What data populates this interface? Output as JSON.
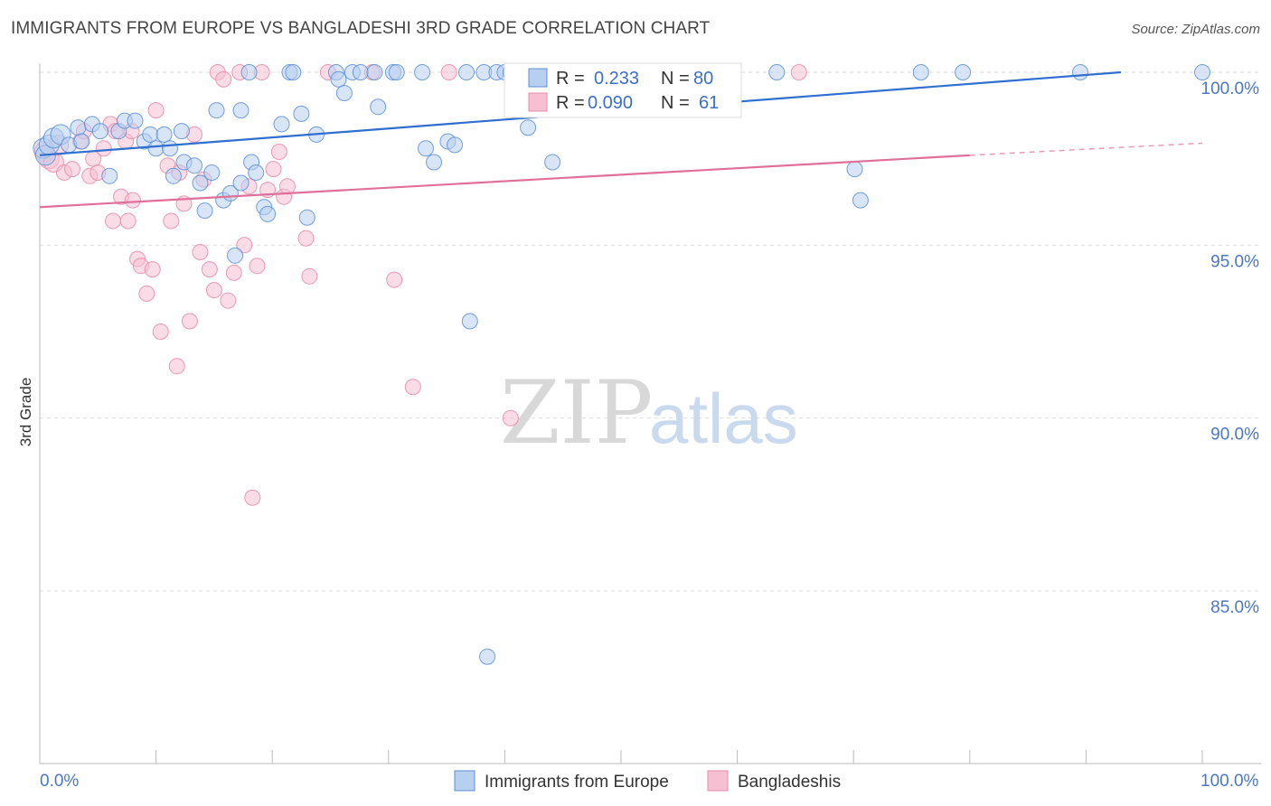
{
  "header": {
    "title": "IMMIGRANTS FROM EUROPE VS BANGLADESHI 3RD GRADE CORRELATION CHART",
    "source": "Source: ZipAtlas.com"
  },
  "watermark": {
    "zip": "ZIP",
    "atlas": "atlas"
  },
  "colors": {
    "blue": "#5b8fd6",
    "blue_fill": "#b8d0f0",
    "blue_line": "#2f6fcf",
    "pink": "#e88aa8",
    "pink_fill": "#f6c0d2",
    "pink_line": "#e0709a",
    "grid": "#dddddd",
    "tick_text": "#4a78c4"
  },
  "chart_data": {
    "type": "scatter",
    "title": "IMMIGRANTS FROM EUROPE VS BANGLADESHI 3RD GRADE CORRELATION CHART",
    "xlabel": "",
    "ylabel": "3rd Grade",
    "xlim": [
      0,
      100
    ],
    "ylim": [
      80.3,
      100.8
    ],
    "x_tick_labels": [
      "0.0%",
      "100.0%"
    ],
    "y_ticks": [
      100,
      95,
      90,
      85
    ],
    "y_tick_labels": [
      "100.0%",
      "95.0%",
      "90.0%",
      "85.0%"
    ],
    "grid": true,
    "legend_position": "top-center",
    "legend": [
      {
        "series": "Immigrants from Europe",
        "r_label": "R =",
        "r_value": "0.233",
        "n_label": "N =",
        "n_value": "80"
      },
      {
        "series": "Bangladeshis",
        "r_label": "R =",
        "r_value": "0.090",
        "n_label": "N =",
        "n_value": "61"
      }
    ],
    "series": [
      {
        "name": "Immigrants from Europe",
        "color": "#5b8fd6",
        "trend": {
          "x": [
            0,
            93
          ],
          "y": [
            97.6,
            100.0
          ],
          "dashed_to": null
        },
        "points": [
          [
            0.3,
            97.8
          ],
          [
            0.5,
            97.6
          ],
          [
            0.8,
            97.9
          ],
          [
            1.2,
            98.1
          ],
          [
            1.8,
            98.2
          ],
          [
            2.5,
            97.9
          ],
          [
            3.3,
            98.4
          ],
          [
            3.6,
            98.0
          ],
          [
            4.5,
            98.5
          ],
          [
            5.2,
            98.3
          ],
          [
            6.0,
            97.0
          ],
          [
            6.8,
            98.3
          ],
          [
            7.3,
            98.6
          ],
          [
            8.2,
            98.6
          ],
          [
            9.0,
            98.0
          ],
          [
            9.5,
            98.2
          ],
          [
            10.0,
            97.8
          ],
          [
            10.7,
            98.2
          ],
          [
            11.2,
            97.8
          ],
          [
            11.5,
            97.0
          ],
          [
            12.2,
            98.3
          ],
          [
            12.4,
            97.4
          ],
          [
            13.3,
            97.3
          ],
          [
            13.8,
            96.8
          ],
          [
            14.2,
            96.0
          ],
          [
            14.8,
            97.1
          ],
          [
            15.2,
            98.9
          ],
          [
            15.8,
            96.3
          ],
          [
            16.4,
            96.5
          ],
          [
            16.8,
            94.7
          ],
          [
            17.3,
            96.8
          ],
          [
            18.2,
            97.4
          ],
          [
            18.6,
            97.1
          ],
          [
            19.3,
            96.1
          ],
          [
            19.6,
            95.9
          ],
          [
            18.0,
            100.0
          ],
          [
            17.3,
            98.9
          ],
          [
            20.8,
            98.5
          ],
          [
            22.5,
            98.8
          ],
          [
            23.0,
            95.8
          ],
          [
            23.8,
            98.2
          ],
          [
            21.5,
            100.0
          ],
          [
            21.8,
            100.0
          ],
          [
            25.5,
            100.0
          ],
          [
            25.7,
            99.8
          ],
          [
            26.2,
            99.4
          ],
          [
            26.9,
            100.0
          ],
          [
            27.6,
            100.0
          ],
          [
            28.8,
            100.0
          ],
          [
            29.1,
            99.0
          ],
          [
            30.4,
            100.0
          ],
          [
            30.7,
            100.0
          ],
          [
            32.9,
            100.0
          ],
          [
            33.2,
            97.8
          ],
          [
            33.9,
            97.4
          ],
          [
            35.1,
            98.0
          ],
          [
            35.7,
            97.9
          ],
          [
            36.7,
            100.0
          ],
          [
            38.2,
            100.0
          ],
          [
            39.3,
            100.0
          ],
          [
            40.0,
            100.0
          ],
          [
            40.5,
            100.0
          ],
          [
            41.5,
            100.0
          ],
          [
            42.0,
            98.4
          ],
          [
            43.1,
            100.0
          ],
          [
            43.6,
            100.0
          ],
          [
            44.1,
            97.4
          ],
          [
            37.0,
            92.8
          ],
          [
            38.5,
            83.1
          ],
          [
            47.0,
            100.0
          ],
          [
            49.3,
            100.0
          ],
          [
            52.1,
            100.0
          ],
          [
            55.0,
            100.0
          ],
          [
            63.4,
            100.0
          ],
          [
            70.1,
            97.2
          ],
          [
            70.6,
            96.3
          ],
          [
            75.8,
            100.0
          ],
          [
            79.4,
            100.0
          ],
          [
            89.5,
            100.0
          ],
          [
            100.0,
            100.0
          ]
        ]
      },
      {
        "name": "Bangladeshis",
        "color": "#e88aa8",
        "trend": {
          "x": [
            0,
            80
          ],
          "y": [
            96.1,
            97.6
          ],
          "dashed_to": [
            100,
            97.95
          ]
        },
        "points": [
          [
            0.4,
            97.7
          ],
          [
            0.8,
            97.5
          ],
          [
            1.2,
            97.4
          ],
          [
            1.6,
            97.9
          ],
          [
            2.1,
            97.1
          ],
          [
            2.8,
            97.2
          ],
          [
            3.5,
            98.0
          ],
          [
            3.8,
            98.3
          ],
          [
            4.3,
            97.0
          ],
          [
            4.6,
            97.5
          ],
          [
            5.0,
            97.1
          ],
          [
            5.5,
            97.8
          ],
          [
            6.1,
            98.5
          ],
          [
            6.5,
            98.3
          ],
          [
            7.0,
            96.4
          ],
          [
            7.4,
            98.0
          ],
          [
            7.9,
            98.3
          ],
          [
            6.3,
            95.7
          ],
          [
            7.6,
            95.7
          ],
          [
            8.0,
            96.3
          ],
          [
            8.4,
            94.6
          ],
          [
            8.7,
            94.4
          ],
          [
            9.2,
            93.6
          ],
          [
            9.7,
            94.3
          ],
          [
            10.0,
            98.9
          ],
          [
            10.4,
            92.5
          ],
          [
            11.0,
            97.3
          ],
          [
            11.3,
            95.7
          ],
          [
            11.8,
            91.5
          ],
          [
            12.0,
            97.1
          ],
          [
            12.4,
            96.2
          ],
          [
            12.9,
            92.8
          ],
          [
            13.3,
            98.2
          ],
          [
            13.8,
            94.8
          ],
          [
            14.1,
            96.9
          ],
          [
            14.6,
            94.3
          ],
          [
            15.0,
            93.7
          ],
          [
            15.3,
            100.0
          ],
          [
            15.8,
            99.8
          ],
          [
            16.2,
            93.4
          ],
          [
            16.7,
            94.2
          ],
          [
            17.2,
            100.0
          ],
          [
            17.6,
            95.0
          ],
          [
            18.0,
            96.7
          ],
          [
            18.3,
            87.7
          ],
          [
            18.7,
            94.4
          ],
          [
            19.1,
            100.0
          ],
          [
            19.6,
            96.6
          ],
          [
            20.1,
            97.2
          ],
          [
            20.6,
            97.7
          ],
          [
            21.0,
            96.4
          ],
          [
            21.3,
            96.7
          ],
          [
            22.9,
            95.2
          ],
          [
            23.2,
            94.1
          ],
          [
            24.8,
            100.0
          ],
          [
            28.6,
            100.0
          ],
          [
            30.5,
            94.0
          ],
          [
            32.1,
            90.9
          ],
          [
            35.2,
            100.0
          ],
          [
            40.5,
            90.0
          ],
          [
            65.3,
            100.0
          ]
        ]
      }
    ]
  }
}
